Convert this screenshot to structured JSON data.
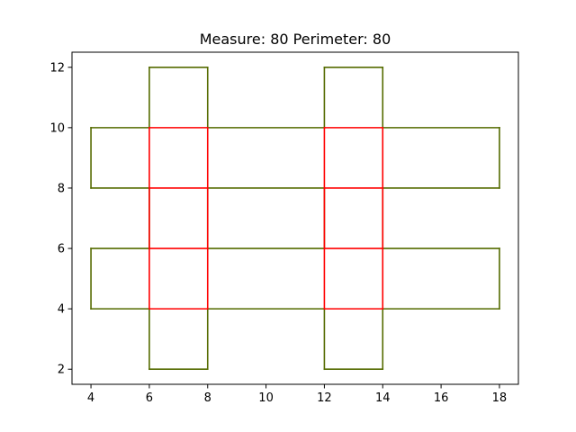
{
  "chart_data": {
    "type": "line",
    "title": "Measure: 80 Perimeter: 80",
    "xlabel": "",
    "ylabel": "",
    "xlim": [
      3.35,
      18.65
    ],
    "ylim": [
      1.5,
      12.5
    ],
    "x_ticks": [
      4,
      6,
      8,
      10,
      12,
      14,
      16,
      18
    ],
    "y_ticks": [
      2,
      4,
      6,
      8,
      10,
      12
    ],
    "grid": false,
    "legend": "none",
    "colors": {
      "inner": "#ff0000",
      "outer": "#556b00"
    },
    "inner_segments": [
      [
        [
          6,
          4
        ],
        [
          6,
          10
        ]
      ],
      [
        [
          8,
          4
        ],
        [
          8,
          10
        ]
      ],
      [
        [
          12,
          4
        ],
        [
          12,
          10
        ]
      ],
      [
        [
          14,
          4
        ],
        [
          14,
          10
        ]
      ],
      [
        [
          6,
          4
        ],
        [
          8,
          4
        ]
      ],
      [
        [
          6,
          6
        ],
        [
          8,
          6
        ]
      ],
      [
        [
          6,
          8
        ],
        [
          8,
          8
        ]
      ],
      [
        [
          6,
          10
        ],
        [
          8,
          10
        ]
      ],
      [
        [
          12,
          4
        ],
        [
          14,
          4
        ]
      ],
      [
        [
          12,
          6
        ],
        [
          14,
          6
        ]
      ],
      [
        [
          12,
          8
        ],
        [
          14,
          8
        ]
      ],
      [
        [
          12,
          10
        ],
        [
          14,
          10
        ]
      ]
    ],
    "outer_segments": [
      [
        [
          6,
          2
        ],
        [
          8,
          2
        ]
      ],
      [
        [
          8,
          2
        ],
        [
          8,
          4
        ]
      ],
      [
        [
          12,
          2
        ],
        [
          14,
          2
        ]
      ],
      [
        [
          12,
          2
        ],
        [
          12,
          4
        ]
      ],
      [
        [
          6,
          2
        ],
        [
          6,
          4
        ]
      ],
      [
        [
          14,
          2
        ],
        [
          14,
          4
        ]
      ],
      [
        [
          4,
          4
        ],
        [
          6,
          4
        ]
      ],
      [
        [
          8,
          4
        ],
        [
          12,
          4
        ]
      ],
      [
        [
          14,
          4
        ],
        [
          18,
          4
        ]
      ],
      [
        [
          4,
          4
        ],
        [
          4,
          6
        ]
      ],
      [
        [
          18,
          4
        ],
        [
          18,
          6
        ]
      ],
      [
        [
          4,
          6
        ],
        [
          6,
          6
        ]
      ],
      [
        [
          8,
          6
        ],
        [
          12,
          6
        ]
      ],
      [
        [
          14,
          6
        ],
        [
          18,
          6
        ]
      ],
      [
        [
          6,
          6
        ],
        [
          6,
          8
        ]
      ],
      [
        [
          8,
          6
        ],
        [
          8,
          8
        ]
      ],
      [
        [
          12,
          6
        ],
        [
          12,
          8
        ]
      ],
      [
        [
          14,
          6
        ],
        [
          14,
          8
        ]
      ],
      [
        [
          4,
          8
        ],
        [
          6,
          8
        ]
      ],
      [
        [
          8,
          8
        ],
        [
          12,
          8
        ]
      ],
      [
        [
          14,
          8
        ],
        [
          18,
          8
        ]
      ],
      [
        [
          4,
          8
        ],
        [
          4,
          10
        ]
      ],
      [
        [
          18,
          8
        ],
        [
          18,
          10
        ]
      ],
      [
        [
          4,
          10
        ],
        [
          6,
          10
        ]
      ],
      [
        [
          8,
          10
        ],
        [
          12,
          10
        ]
      ],
      [
        [
          14,
          10
        ],
        [
          18,
          10
        ]
      ],
      [
        [
          6,
          10
        ],
        [
          6,
          12
        ]
      ],
      [
        [
          8,
          10
        ],
        [
          8,
          12
        ]
      ],
      [
        [
          12,
          10
        ],
        [
          12,
          12
        ]
      ],
      [
        [
          14,
          10
        ],
        [
          14,
          12
        ]
      ],
      [
        [
          6,
          12
        ],
        [
          8,
          12
        ]
      ],
      [
        [
          12,
          12
        ],
        [
          14,
          12
        ]
      ]
    ]
  }
}
